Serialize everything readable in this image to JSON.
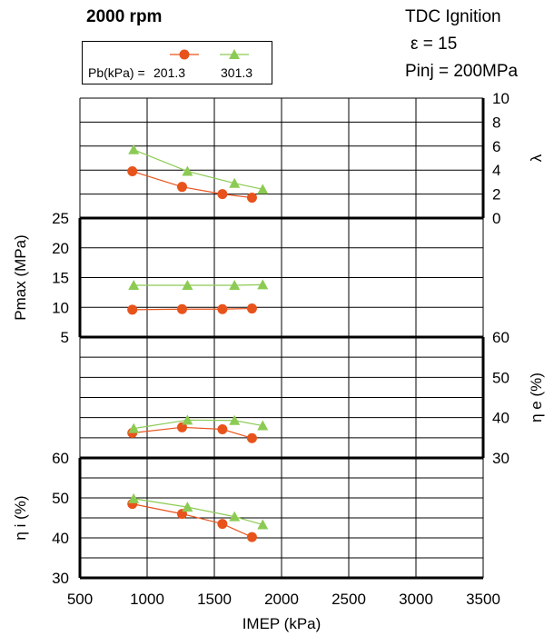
{
  "header": {
    "rpm": "2000 rpm",
    "ignition": "TDC Ignition",
    "epsilon": "ε  = 15",
    "pinj": "Pinj = 200MPa"
  },
  "legend": {
    "prefix": "Pb(kPa) = ",
    "series": [
      "201.3",
      "301.3"
    ]
  },
  "colors": {
    "s201": "#E8531C",
    "s301": "#8CCB53",
    "grid": "#000000"
  },
  "chart_data": {
    "type": "line",
    "xlabel": "IMEP (kPa)",
    "xlim": [
      500,
      3500
    ],
    "xticks": [
      "500",
      "1000",
      "1500",
      "2000",
      "2500",
      "3000",
      "3500"
    ],
    "panels": [
      {
        "name": "lambda",
        "ylabel": "λ",
        "axis_side": "right",
        "ylim": [
          0,
          10
        ],
        "yticks": [
          "0",
          "2",
          "4",
          "6",
          "8",
          "10"
        ],
        "series": [
          {
            "name": "201.3",
            "x": [
              890,
              1260,
              1560,
              1780
            ],
            "y": [
              3.9,
              2.6,
              2.0,
              1.7
            ]
          },
          {
            "name": "301.3",
            "x": [
              900,
              1300,
              1650,
              1860
            ],
            "y": [
              5.7,
              3.9,
              2.9,
              2.4
            ]
          }
        ]
      },
      {
        "name": "pmax",
        "ylabel": "Pmax (MPa)",
        "axis_side": "left",
        "ylim": [
          5,
          25
        ],
        "yticks": [
          "5",
          "10",
          "15",
          "20",
          "25"
        ],
        "series": [
          {
            "name": "201.3",
            "x": [
              890,
              1260,
              1560,
              1780
            ],
            "y": [
              9.6,
              9.7,
              9.7,
              9.8
            ]
          },
          {
            "name": "301.3",
            "x": [
              900,
              1300,
              1650,
              1860
            ],
            "y": [
              13.7,
              13.7,
              13.7,
              13.8
            ]
          }
        ]
      },
      {
        "name": "eta_e",
        "ylabel": "η e (%)",
        "axis_side": "right",
        "ylim": [
          30,
          60
        ],
        "yticks": [
          "30",
          "40",
          "50",
          "60"
        ],
        "series": [
          {
            "name": "201.3",
            "x": [
              890,
              1260,
              1560,
              1780
            ],
            "y": [
              36.2,
              37.6,
              37.1,
              34.9
            ]
          },
          {
            "name": "301.3",
            "x": [
              900,
              1300,
              1650,
              1860
            ],
            "y": [
              37.3,
              39.4,
              39.3,
              38.0
            ]
          }
        ]
      },
      {
        "name": "eta_i",
        "ylabel": "η i (%)",
        "axis_side": "left",
        "ylim": [
          30,
          60
        ],
        "yticks": [
          "30",
          "40",
          "50",
          "60"
        ],
        "series": [
          {
            "name": "201.3",
            "x": [
              890,
              1260,
              1560,
              1780
            ],
            "y": [
              48.5,
              46.0,
              43.5,
              40.2
            ]
          },
          {
            "name": "301.3",
            "x": [
              900,
              1300,
              1650,
              1860
            ],
            "y": [
              49.8,
              47.7,
              45.3,
              43.3
            ]
          }
        ]
      }
    ]
  }
}
